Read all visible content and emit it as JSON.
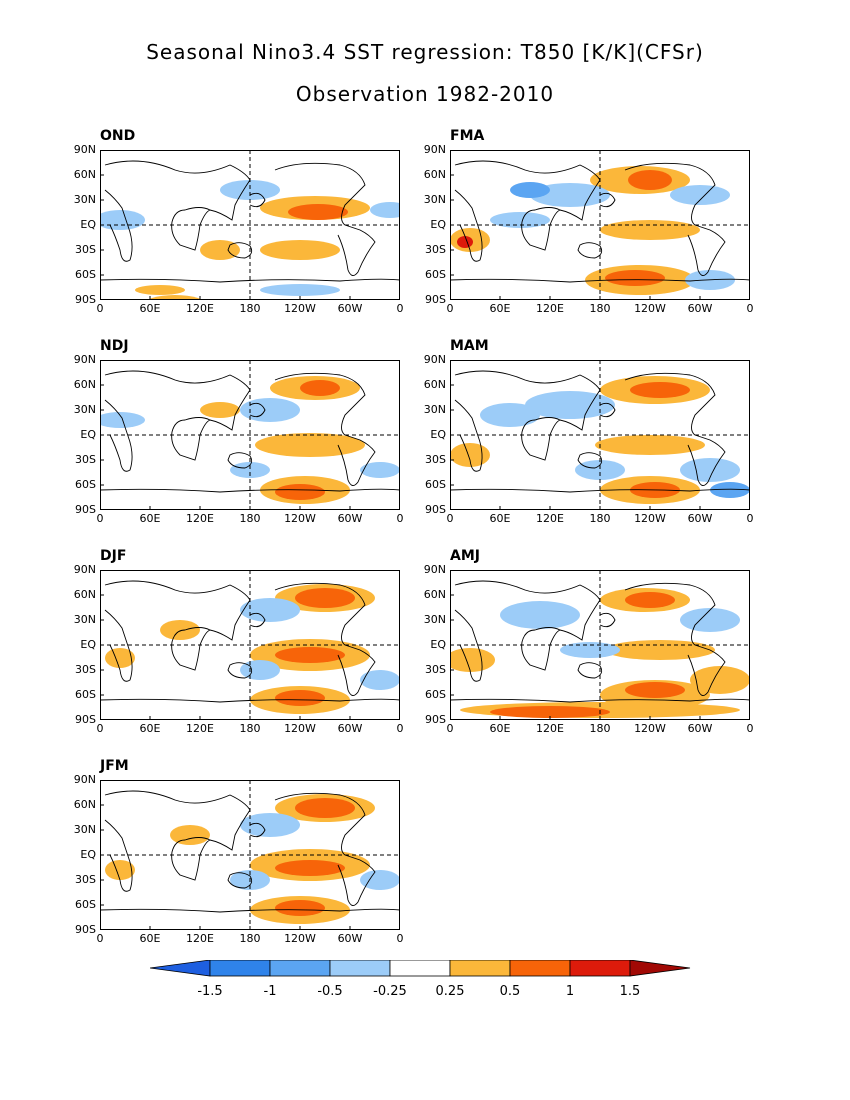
{
  "header": {
    "title": "Seasonal Nino3.4 SST regression: T850 [K/K](CFSr)",
    "subtitle": "Observation 1982-2010"
  },
  "lat_labels": [
    "90N",
    "60N",
    "30N",
    "EQ",
    "30S",
    "60S",
    "90S"
  ],
  "lon_labels": [
    "0",
    "60E",
    "120E",
    "180",
    "120W",
    "60W",
    "0"
  ],
  "panels": [
    {
      "label": "OND"
    },
    {
      "label": "FMA"
    },
    {
      "label": "NDJ"
    },
    {
      "label": "MAM"
    },
    {
      "label": "DJF"
    },
    {
      "label": "AMJ"
    },
    {
      "label": "JFM"
    }
  ],
  "colorbar": {
    "labels": [
      "-1.5",
      "-1",
      "-0.5",
      "-0.25",
      "0.25",
      "0.5",
      "1",
      "1.5"
    ],
    "colors": [
      "#1e5fe0",
      "#2f83ea",
      "#5ba5f2",
      "#9cccf8",
      "#ffffff",
      "#fbb73a",
      "#f76409",
      "#dd1b0b",
      "#a10905"
    ]
  }
}
